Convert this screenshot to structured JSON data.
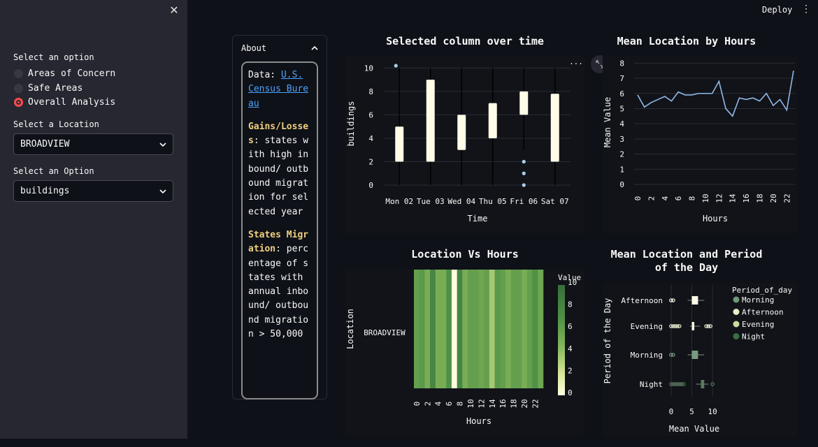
{
  "sidebar": {
    "option_label": "Select an option",
    "radio_options": [
      {
        "label": "Areas of Concern",
        "selected": false
      },
      {
        "label": "Safe Areas",
        "selected": false
      },
      {
        "label": "Overall Analysis",
        "selected": true
      }
    ],
    "location_label": "Select a Location",
    "location_value": "BROADVIEW",
    "option2_label": "Select an Option",
    "option2_value": "buildings"
  },
  "header": {
    "deploy_label": "Deploy",
    "menu_icon": "vertical-dots-icon",
    "close_icon": "close-icon"
  },
  "about": {
    "title": "About",
    "data_label": "Data: ",
    "data_link": "U.S. Census Bureau",
    "gains_title": "Gains/Losses",
    "gains_text": ": states with high inbound/ outbound migration for selected year",
    "states_title": "States Migration",
    "states_text": ": percentage of states with annual inbound/ outbound migration > 50,000"
  },
  "colors": {
    "accent": "#ff4b4b",
    "box_fill": "#fffce8",
    "line": "#8fb8e8",
    "point": "#a8d0f0"
  },
  "charts": {
    "box_over_time": {
      "title": "Selected column over time",
      "xlabel": "Time",
      "ylabel": "buildings",
      "yticks": [
        "0",
        "2",
        "4",
        "6",
        "8",
        "10"
      ],
      "chart_data": {
        "type": "box",
        "categories": [
          "Mon 02",
          "Tue 03",
          "Wed 04",
          "Thu 05",
          "Fri 06",
          "Sat 07"
        ],
        "ylim": [
          0,
          10.5
        ],
        "boxes": [
          {
            "min": 0,
            "q1": 2,
            "q3": 5,
            "max": 10,
            "outliers": [
              10.2
            ]
          },
          {
            "min": 0,
            "q1": 2,
            "q3": 9,
            "max": 10,
            "outliers": []
          },
          {
            "min": 0,
            "q1": 3,
            "q3": 6,
            "max": 10,
            "outliers": []
          },
          {
            "min": 0,
            "q1": 4,
            "q3": 7,
            "max": 10,
            "outliers": []
          },
          {
            "min": 3,
            "q1": 6,
            "q3": 8,
            "max": 10,
            "outliers": [
              2,
              1,
              0
            ]
          },
          {
            "min": 0,
            "q1": 2,
            "q3": 7.8,
            "max": 10,
            "outliers": []
          }
        ]
      }
    },
    "mean_by_hours": {
      "title": "Mean Location by Hours",
      "xlabel": "Hours",
      "ylabel": "Mean Value",
      "yticks": [
        "0",
        "1",
        "2",
        "3",
        "4",
        "5",
        "6",
        "7",
        "8"
      ],
      "xticks": [
        "0",
        "2",
        "4",
        "6",
        "8",
        "10",
        "12",
        "14",
        "16",
        "18",
        "20",
        "22"
      ],
      "chart_data": {
        "type": "line",
        "x": [
          0,
          1,
          2,
          3,
          4,
          5,
          6,
          7,
          8,
          9,
          10,
          11,
          12,
          13,
          14,
          15,
          16,
          17,
          18,
          19,
          20,
          21,
          22,
          23
        ],
        "y": [
          5.9,
          5.1,
          5.4,
          5.6,
          5.8,
          5.5,
          6.1,
          5.9,
          5.9,
          6.0,
          6.0,
          6.0,
          6.8,
          5.0,
          4.5,
          5.7,
          5.6,
          5.7,
          5.5,
          6.0,
          5.2,
          5.6,
          4.9,
          7.5
        ],
        "ylim": [
          0,
          8.2
        ]
      }
    },
    "heatmap": {
      "title": "Location Vs Hours",
      "xlabel": "Hours",
      "ylabel": "Location",
      "row_label": "BROADVIEW",
      "colorbar_title": "Value",
      "colorbar_ticks": [
        "0",
        "2",
        "4",
        "6",
        "8",
        "10"
      ],
      "xticks": [
        "0",
        "2",
        "4",
        "6",
        "8",
        "10",
        "12",
        "14",
        "16",
        "18",
        "20",
        "22"
      ],
      "chart_data": {
        "type": "heatmap",
        "x": [
          0,
          1,
          2,
          3,
          4,
          5,
          6,
          7,
          8,
          9,
          10,
          11,
          12,
          13,
          14,
          15,
          16,
          17,
          18,
          19,
          20,
          21,
          22,
          23
        ],
        "values": [
          6,
          6.5,
          5,
          8,
          5,
          5,
          7,
          0,
          8,
          5,
          6,
          6,
          5.5,
          6,
          3.5,
          6.5,
          6,
          5,
          6,
          6,
          5,
          6,
          7,
          5.5
        ],
        "zlim": [
          0,
          10
        ]
      }
    },
    "period_box": {
      "title": "Mean Location and Period of the Day",
      "xlabel": "Mean Value",
      "ylabel": "Period of the Day",
      "xticks": [
        "0",
        "5",
        "10"
      ],
      "legend_title": "Period_of_day",
      "chart_data": {
        "type": "box",
        "orientation": "horizontal",
        "xlim": [
          -1,
          11.5
        ],
        "categories": [
          "Afternoon",
          "Evening",
          "Morning",
          "Night"
        ],
        "legend": [
          "Morning",
          "Afternoon",
          "Evening",
          "Night"
        ],
        "legend_colors": [
          "#6e9a74",
          "#e6f0c8",
          "#c8dca0",
          "#3a6e44"
        ],
        "boxes": [
          {
            "name": "Afternoon",
            "min": 4,
            "q1": 5,
            "q3": 6.5,
            "max": 8,
            "outliers": [
              0,
              0.5
            ],
            "color": "#fffce8"
          },
          {
            "name": "Evening",
            "min": 4.5,
            "q1": 5,
            "q3": 5.6,
            "max": 7,
            "outliers": [
              0,
              0.5,
              1,
              1.5,
              2,
              8.5,
              9,
              9.5
            ],
            "color": "#f4f8d8"
          },
          {
            "name": "Morning",
            "min": 4,
            "q1": 5,
            "q3": 6.5,
            "max": 8,
            "outliers": [
              0,
              0.5
            ],
            "color": "#7a9a80"
          },
          {
            "name": "Night",
            "min": 6,
            "q1": 7.2,
            "q3": 8,
            "max": 9,
            "outliers": [
              0,
              0.5,
              1,
              1.5,
              2,
              2.5,
              3,
              10
            ],
            "color": "#5a7a60"
          }
        ]
      }
    }
  }
}
